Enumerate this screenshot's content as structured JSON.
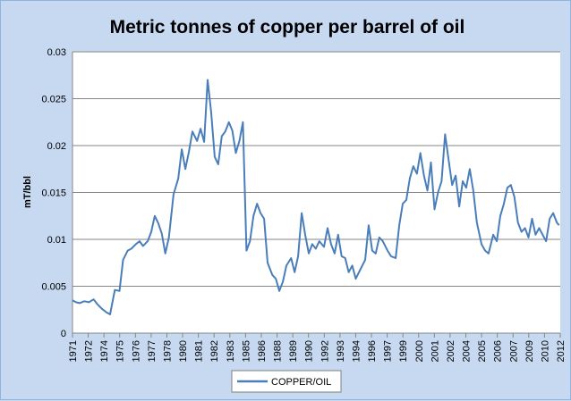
{
  "chart_data": {
    "type": "line",
    "title": "Metric tonnes of copper per barrel of oil",
    "ylabel": "mT/bbl",
    "xlabel": "",
    "ylim": [
      0,
      0.03
    ],
    "yticks": [
      "0",
      "0.005",
      "0.01",
      "0.015",
      "0.02",
      "0.025",
      "0.03"
    ],
    "xlim": [
      1971,
      2012.5
    ],
    "xticks": [
      "1971",
      "1972",
      "1974",
      "1975",
      "1976",
      "1977",
      "1978",
      "1980",
      "1981",
      "1982",
      "1983",
      "1985",
      "1986",
      "1988",
      "1989",
      "1990",
      "1992",
      "1993",
      "1994",
      "1996",
      "1997",
      "1999",
      "2000",
      "2001",
      "2002",
      "2004",
      "2005",
      "2006",
      "2007",
      "2009",
      "2010",
      "2012"
    ],
    "grid": true,
    "legend_position": "bottom",
    "colors": {
      "series": "#4a7ebb",
      "plot_bg": "#ffffff",
      "chart_bg": "#c6d9f1",
      "grid": "#868686"
    },
    "series": [
      {
        "name": "COPPER/OIL",
        "x": [
          1971.0,
          1971.3,
          1971.6,
          1972.0,
          1972.4,
          1972.8,
          1973.1,
          1973.5,
          1973.9,
          1974.2,
          1974.6,
          1975.0,
          1975.3,
          1975.7,
          1976.0,
          1976.4,
          1976.7,
          1977.0,
          1977.4,
          1977.7,
          1978.0,
          1978.3,
          1978.6,
          1978.9,
          1979.2,
          1979.6,
          1980.0,
          1980.3,
          1980.6,
          1980.9,
          1981.2,
          1981.6,
          1981.9,
          1982.2,
          1982.5,
          1982.8,
          1983.1,
          1983.4,
          1983.7,
          1984.0,
          1984.3,
          1984.6,
          1984.9,
          1985.2,
          1985.5,
          1985.8,
          1986.1,
          1986.4,
          1986.7,
          1987.0,
          1987.3,
          1987.6,
          1988.0,
          1988.3,
          1988.6,
          1988.9,
          1989.2,
          1989.6,
          1989.9,
          1990.2,
          1990.5,
          1990.8,
          1991.1,
          1991.4,
          1991.7,
          1992.0,
          1992.4,
          1992.7,
          1993.0,
          1993.3,
          1993.6,
          1993.9,
          1994.2,
          1994.5,
          1994.8,
          1995.1,
          1995.5,
          1995.9,
          1996.2,
          1996.5,
          1996.8,
          1997.1,
          1997.4,
          1997.8,
          1998.1,
          1998.5,
          1998.8,
          1999.1,
          1999.4,
          1999.7,
          2000.0,
          2000.3,
          2000.6,
          2000.9,
          2001.2,
          2001.5,
          2001.8,
          2002.1,
          2002.4,
          2002.7,
          2003.0,
          2003.3,
          2003.6,
          2003.9,
          2004.2,
          2004.5,
          2004.8,
          2005.1,
          2005.4,
          2005.8,
          2006.1,
          2006.4,
          2006.8,
          2007.1,
          2007.4,
          2007.7,
          2008.0,
          2008.3,
          2008.6,
          2008.9,
          2009.2,
          2009.5,
          2009.8,
          2010.1,
          2010.4,
          2010.7,
          2011.0,
          2011.3,
          2011.6,
          2011.9,
          2012.2,
          2012.4
        ],
        "values": [
          0.0035,
          0.0033,
          0.0032,
          0.0034,
          0.0033,
          0.0036,
          0.0031,
          0.0026,
          0.0022,
          0.002,
          0.0046,
          0.0045,
          0.0078,
          0.0088,
          0.009,
          0.0095,
          0.0098,
          0.0093,
          0.0098,
          0.0108,
          0.0125,
          0.0117,
          0.0106,
          0.0085,
          0.0102,
          0.0148,
          0.0165,
          0.0196,
          0.0175,
          0.0193,
          0.0215,
          0.0205,
          0.0218,
          0.0204,
          0.027,
          0.0235,
          0.0188,
          0.018,
          0.021,
          0.0215,
          0.0225,
          0.0216,
          0.0192,
          0.0205,
          0.0225,
          0.0088,
          0.0098,
          0.0125,
          0.0138,
          0.0128,
          0.0122,
          0.0075,
          0.0062,
          0.0058,
          0.0045,
          0.0055,
          0.0072,
          0.008,
          0.0065,
          0.0082,
          0.0128,
          0.0105,
          0.0085,
          0.0095,
          0.009,
          0.0098,
          0.0092,
          0.0112,
          0.0095,
          0.0085,
          0.0105,
          0.0082,
          0.008,
          0.0065,
          0.0072,
          0.0058,
          0.0068,
          0.0078,
          0.0115,
          0.0088,
          0.0085,
          0.0102,
          0.0098,
          0.0088,
          0.0082,
          0.008,
          0.0115,
          0.0138,
          0.0142,
          0.0165,
          0.0178,
          0.017,
          0.0192,
          0.0168,
          0.0152,
          0.0182,
          0.0132,
          0.015,
          0.0162,
          0.0212,
          0.0185,
          0.0158,
          0.0168,
          0.0135,
          0.0162,
          0.0155,
          0.0175,
          0.0152,
          0.0118,
          0.0095,
          0.0088,
          0.0085,
          0.0105,
          0.0098,
          0.0125,
          0.0138,
          0.0155,
          0.0158,
          0.0145,
          0.0118,
          0.0108,
          0.0112,
          0.0102,
          0.0122,
          0.0105,
          0.0112,
          0.0105,
          0.0098,
          0.0122,
          0.0128,
          0.0118,
          0.0115
        ]
      }
    ]
  }
}
